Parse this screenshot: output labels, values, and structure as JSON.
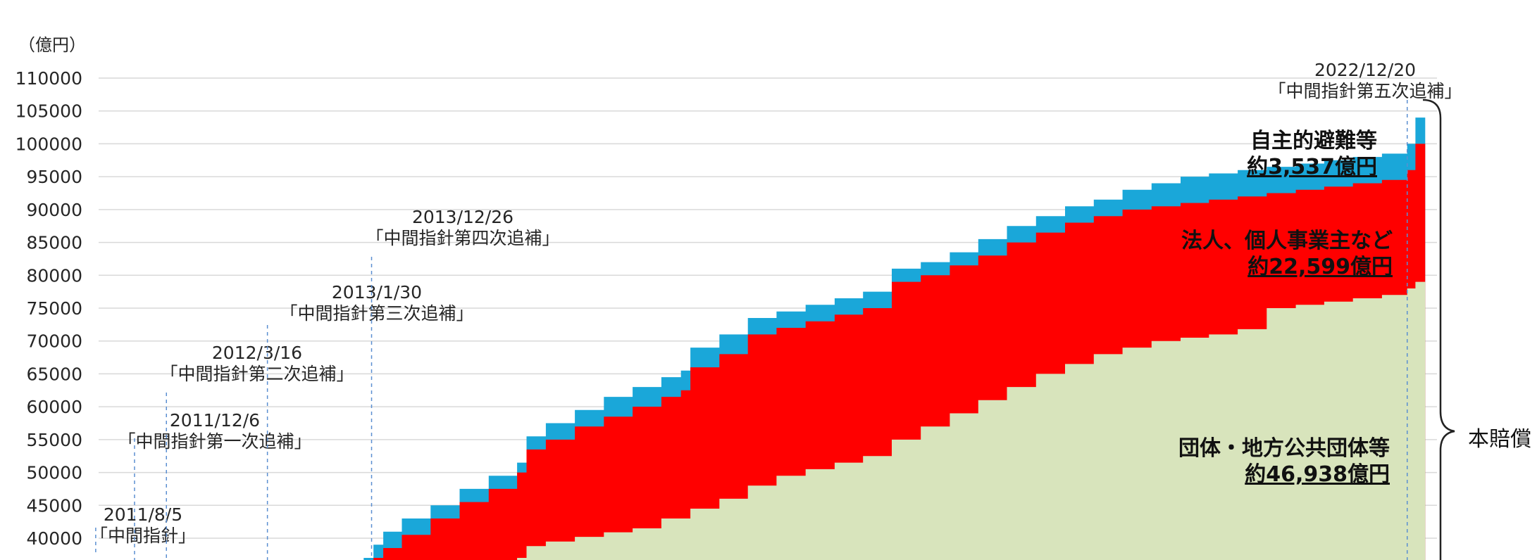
{
  "chart_data": {
    "type": "area",
    "stacked": true,
    "unit_label": "（億円）",
    "ylim": [
      37000,
      112000
    ],
    "yticks": [
      110000,
      105000,
      100000,
      95000,
      90000,
      85000,
      80000,
      75000,
      70000,
      65000,
      60000,
      55000,
      50000,
      45000,
      40000
    ],
    "ytick_labels": [
      "110000",
      "105000",
      "100000",
      "95000",
      "90000",
      "85000",
      "80000",
      "75000",
      "70000",
      "65000",
      "60000",
      "55000",
      "50000",
      "45000",
      "40000"
    ],
    "grid": true,
    "x_start": "2011-03-11",
    "x_end": "2023-03-31",
    "events": [
      {
        "date": "2011-08-05",
        "date_label": "2011/8/5",
        "name": "「中間指針」"
      },
      {
        "date": "2011-12-06",
        "date_label": "2011/12/6",
        "name": "「中間指針第一次追補」"
      },
      {
        "date": "2012-03-16",
        "date_label": "2012/3/16",
        "name": "「中間指針第二次追補」"
      },
      {
        "date": "2013-01-30",
        "date_label": "2013/1/30",
        "name": "「中間指針第三次追補」"
      },
      {
        "date": "2013-12-26",
        "date_label": "2013/12/26",
        "name": "「中間指針第四次追補」"
      },
      {
        "date": "2022-12-20",
        "date_label": "2022/12/20",
        "name": "「中間指針第五次追補」"
      }
    ],
    "series": [
      {
        "name": "団体・地方公共団体等",
        "amount_label": "約46,938億円",
        "color": "#d8e4bc",
        "points": [
          [
            "2015-04-01",
            37000
          ],
          [
            "2015-05-01",
            38800
          ],
          [
            "2015-07-01",
            39500
          ],
          [
            "2015-10-01",
            40200
          ],
          [
            "2016-01-01",
            40900
          ],
          [
            "2016-04-01",
            41500
          ],
          [
            "2016-07-01",
            43000
          ],
          [
            "2016-10-01",
            44500
          ],
          [
            "2017-01-01",
            46000
          ],
          [
            "2017-04-01",
            48000
          ],
          [
            "2017-07-01",
            49500
          ],
          [
            "2017-10-01",
            50500
          ],
          [
            "2018-01-01",
            51500
          ],
          [
            "2018-04-01",
            52500
          ],
          [
            "2018-07-01",
            55000
          ],
          [
            "2018-10-01",
            57000
          ],
          [
            "2019-01-01",
            59000
          ],
          [
            "2019-04-01",
            61000
          ],
          [
            "2019-07-01",
            63000
          ],
          [
            "2019-10-01",
            65000
          ],
          [
            "2020-01-01",
            66500
          ],
          [
            "2020-04-01",
            68000
          ],
          [
            "2020-07-01",
            69000
          ],
          [
            "2020-10-01",
            70000
          ],
          [
            "2021-01-01",
            70500
          ],
          [
            "2021-04-01",
            71000
          ],
          [
            "2021-07-01",
            71800
          ],
          [
            "2021-10-01",
            75000
          ],
          [
            "2022-01-01",
            75500
          ],
          [
            "2022-04-01",
            76000
          ],
          [
            "2022-07-01",
            76500
          ],
          [
            "2022-10-01",
            77000
          ],
          [
            "2022-12-20",
            78000
          ],
          [
            "2023-01-15",
            79000
          ],
          [
            "2023-02-15",
            80000
          ]
        ]
      },
      {
        "name": "法人、個人事業主など",
        "amount_label": "約22,599億円",
        "color": "#ff0000",
        "points": [
          [
            "2014-01-01",
            37000
          ],
          [
            "2014-02-01",
            38500
          ],
          [
            "2014-04-01",
            40500
          ],
          [
            "2014-07-01",
            43000
          ],
          [
            "2014-10-01",
            45500
          ],
          [
            "2015-01-01",
            47500
          ],
          [
            "2015-04-01",
            50000
          ],
          [
            "2015-05-01",
            53500
          ],
          [
            "2015-07-01",
            55000
          ],
          [
            "2015-10-01",
            57000
          ],
          [
            "2016-01-01",
            58500
          ],
          [
            "2016-04-01",
            60000
          ],
          [
            "2016-07-01",
            61500
          ],
          [
            "2016-09-01",
            62500
          ],
          [
            "2016-10-01",
            66000
          ],
          [
            "2017-01-01",
            68000
          ],
          [
            "2017-04-01",
            71000
          ],
          [
            "2017-07-01",
            72000
          ],
          [
            "2017-10-01",
            73000
          ],
          [
            "2018-01-01",
            74000
          ],
          [
            "2018-04-01",
            75000
          ],
          [
            "2018-07-01",
            79000
          ],
          [
            "2018-10-01",
            80000
          ],
          [
            "2019-01-01",
            81500
          ],
          [
            "2019-04-01",
            83000
          ],
          [
            "2019-07-01",
            85000
          ],
          [
            "2019-10-01",
            86500
          ],
          [
            "2020-01-01",
            88000
          ],
          [
            "2020-04-01",
            89000
          ],
          [
            "2020-07-01",
            90000
          ],
          [
            "2020-10-01",
            90500
          ],
          [
            "2021-01-01",
            91000
          ],
          [
            "2021-04-01",
            91500
          ],
          [
            "2021-07-01",
            92000
          ],
          [
            "2021-10-01",
            92500
          ],
          [
            "2022-01-01",
            93000
          ],
          [
            "2022-04-01",
            93500
          ],
          [
            "2022-07-01",
            94000
          ],
          [
            "2022-10-01",
            94500
          ],
          [
            "2022-12-20",
            96000
          ],
          [
            "2023-01-15",
            100000
          ],
          [
            "2023-02-15",
            102500
          ]
        ]
      },
      {
        "name": "自主的避難等",
        "amount_label": "約3,537億円",
        "color": "#1aa7d9",
        "points": [
          [
            "2013-12-01",
            37000
          ],
          [
            "2014-01-01",
            39000
          ],
          [
            "2014-02-01",
            41000
          ],
          [
            "2014-04-01",
            43000
          ],
          [
            "2014-07-01",
            45000
          ],
          [
            "2014-10-01",
            47500
          ],
          [
            "2015-01-01",
            49500
          ],
          [
            "2015-04-01",
            51500
          ],
          [
            "2015-05-01",
            55500
          ],
          [
            "2015-07-01",
            57500
          ],
          [
            "2015-10-01",
            59500
          ],
          [
            "2016-01-01",
            61500
          ],
          [
            "2016-04-01",
            63000
          ],
          [
            "2016-07-01",
            64500
          ],
          [
            "2016-09-01",
            65500
          ],
          [
            "2016-10-01",
            69000
          ],
          [
            "2017-01-01",
            71000
          ],
          [
            "2017-04-01",
            73500
          ],
          [
            "2017-07-01",
            74500
          ],
          [
            "2017-10-01",
            75500
          ],
          [
            "2018-01-01",
            76500
          ],
          [
            "2018-04-01",
            77500
          ],
          [
            "2018-07-01",
            81000
          ],
          [
            "2018-10-01",
            82000
          ],
          [
            "2019-01-01",
            83500
          ],
          [
            "2019-04-01",
            85500
          ],
          [
            "2019-07-01",
            87500
          ],
          [
            "2019-10-01",
            89000
          ],
          [
            "2020-01-01",
            90500
          ],
          [
            "2020-04-01",
            91500
          ],
          [
            "2020-07-01",
            93000
          ],
          [
            "2020-10-01",
            94000
          ],
          [
            "2021-01-01",
            95000
          ],
          [
            "2021-04-01",
            95500
          ],
          [
            "2021-07-01",
            96000
          ],
          [
            "2021-10-01",
            96500
          ],
          [
            "2022-01-01",
            97000
          ],
          [
            "2022-04-01",
            97500
          ],
          [
            "2022-07-01",
            98000
          ],
          [
            "2022-10-01",
            98500
          ],
          [
            "2022-12-20",
            100000
          ],
          [
            "2023-01-15",
            104000
          ],
          [
            "2023-02-15",
            106500
          ]
        ]
      }
    ],
    "brace_label": "本賠償"
  }
}
